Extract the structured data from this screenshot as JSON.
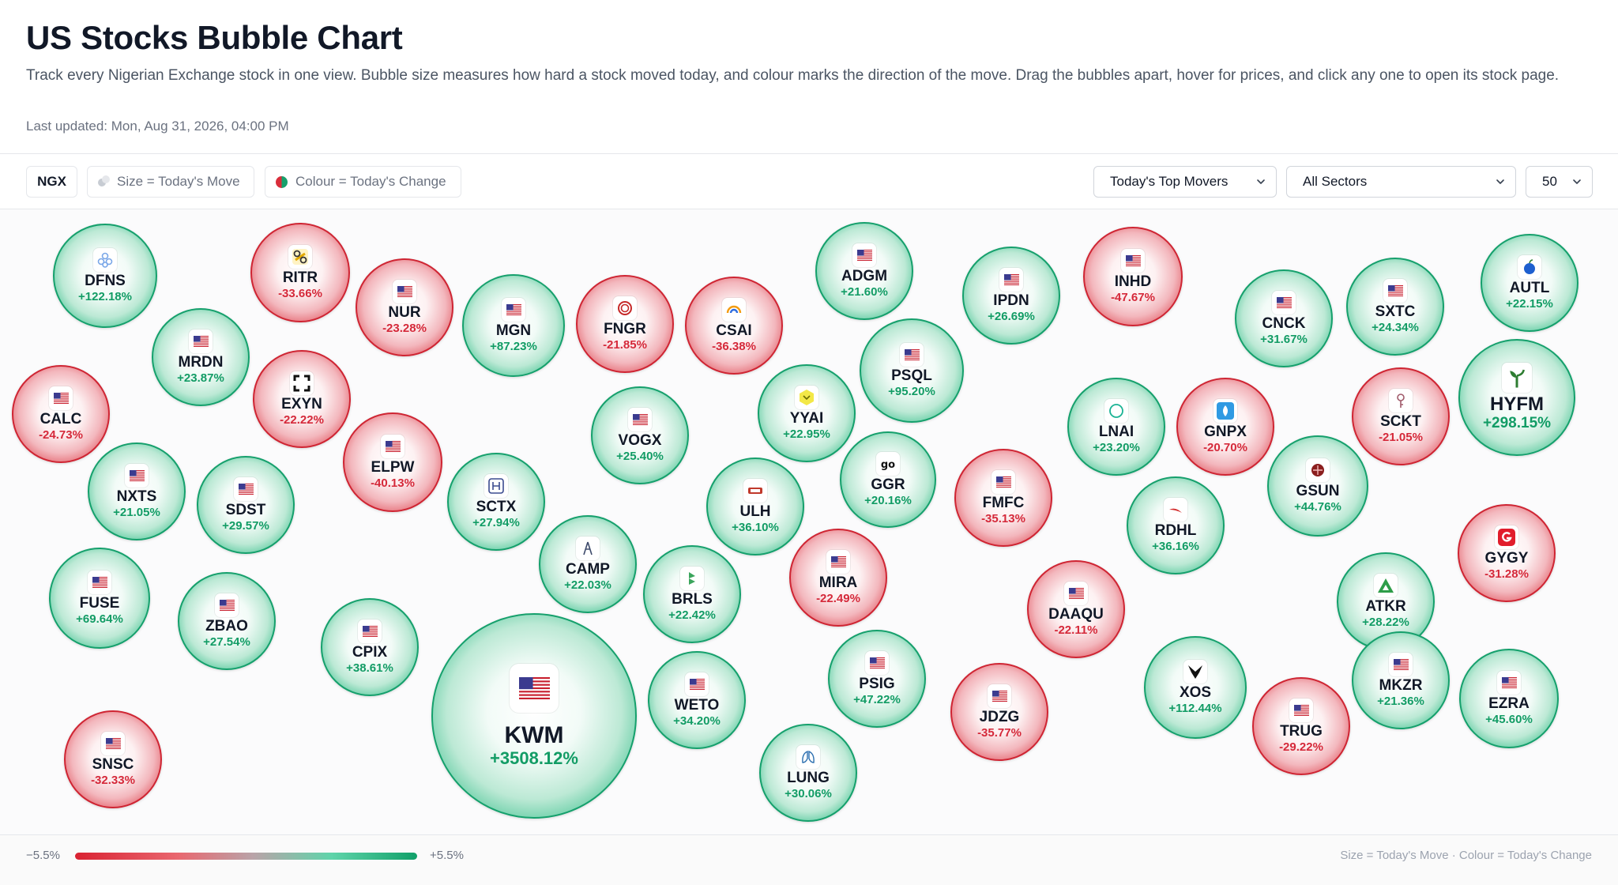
{
  "header": {
    "title": "US Stocks Bubble Chart",
    "subtitle": "Track every Nigerian Exchange stock in one view. Bubble size measures how hard a stock moved today, and colour marks the direction of the move. Drag the bubbles apart, hover for prices, and click any one to open its stock page.",
    "updated": "Last updated: Mon, Aug 31, 2026, 04:00 PM"
  },
  "toolbar": {
    "exchange": "NGX",
    "size_legend": "Size = Today's Move",
    "colour_legend": "Colour = Today's Change",
    "sort_select": "Today's Top Movers",
    "sector_select": "All Sectors",
    "count_select": "50"
  },
  "colors": {
    "up": "#15a06c",
    "down": "#cf2533"
  },
  "bubbles": [
    {
      "sym": "DFNS",
      "change": "+122.18%",
      "dir": "up",
      "logo": "flower-logo"
    },
    {
      "sym": "RITR",
      "change": "-33.66%",
      "dir": "down",
      "logo": "chain-logo"
    },
    {
      "sym": "NUR",
      "change": "-23.28%",
      "dir": "down",
      "logo": "us-flag-icon"
    },
    {
      "sym": "MGN",
      "change": "+87.23%",
      "dir": "up",
      "logo": "us-flag-icon"
    },
    {
      "sym": "FNGR",
      "change": "-21.85%",
      "dir": "down",
      "logo": "ring-logo"
    },
    {
      "sym": "CSAI",
      "change": "-36.38%",
      "dir": "down",
      "logo": "arc-logo"
    },
    {
      "sym": "ADGM",
      "change": "+21.60%",
      "dir": "up",
      "logo": "us-flag-icon"
    },
    {
      "sym": "IPDN",
      "change": "+26.69%",
      "dir": "up",
      "logo": "us-flag-icon"
    },
    {
      "sym": "INHD",
      "change": "-47.67%",
      "dir": "down",
      "logo": "us-flag-icon"
    },
    {
      "sym": "CNCK",
      "change": "+31.67%",
      "dir": "up",
      "logo": "us-flag-icon"
    },
    {
      "sym": "SXTC",
      "change": "+24.34%",
      "dir": "up",
      "logo": "us-flag-icon"
    },
    {
      "sym": "AUTL",
      "change": "+22.15%",
      "dir": "up",
      "logo": "blue-apple-logo"
    },
    {
      "sym": "MRDN",
      "change": "+23.87%",
      "dir": "up",
      "logo": "us-flag-icon"
    },
    {
      "sym": "EXYN",
      "change": "-22.22%",
      "dir": "down",
      "logo": "frame-logo"
    },
    {
      "sym": "PSQL",
      "change": "+95.20%",
      "dir": "up",
      "logo": "us-flag-icon"
    },
    {
      "sym": "CALC",
      "change": "-24.73%",
      "dir": "down",
      "logo": "us-flag-icon"
    },
    {
      "sym": "YYAI",
      "change": "+22.95%",
      "dir": "up",
      "logo": "yellow-hex-logo"
    },
    {
      "sym": "VOGX",
      "change": "+25.40%",
      "dir": "up",
      "logo": "us-flag-icon"
    },
    {
      "sym": "HYFM",
      "change": "+298.15%",
      "dir": "up",
      "logo": "plant-logo"
    },
    {
      "sym": "SCKT",
      "change": "-21.05%",
      "dir": "down",
      "logo": "key-logo"
    },
    {
      "sym": "LNAI",
      "change": "+23.20%",
      "dir": "up",
      "logo": "circle-logo"
    },
    {
      "sym": "GNPX",
      "change": "-20.70%",
      "dir": "down",
      "logo": "blue-drop-logo"
    },
    {
      "sym": "ELPW",
      "change": "-40.13%",
      "dir": "down",
      "logo": "us-flag-icon"
    },
    {
      "sym": "GGR",
      "change": "+20.16%",
      "dir": "up",
      "logo": "go-logo"
    },
    {
      "sym": "NXTS",
      "change": "+21.05%",
      "dir": "up",
      "logo": "us-flag-icon"
    },
    {
      "sym": "SDST",
      "change": "+29.57%",
      "dir": "up",
      "logo": "us-flag-icon"
    },
    {
      "sym": "SCTX",
      "change": "+27.94%",
      "dir": "up",
      "logo": "grid-logo"
    },
    {
      "sym": "ULH",
      "change": "+36.10%",
      "dir": "up",
      "logo": "truck-logo"
    },
    {
      "sym": "FMFC",
      "change": "-35.13%",
      "dir": "down",
      "logo": "us-flag-icon"
    },
    {
      "sym": "GSUN",
      "change": "+44.76%",
      "dir": "up",
      "logo": "sun-logo"
    },
    {
      "sym": "RDHL",
      "change": "+36.16%",
      "dir": "up",
      "logo": "red-swoosh-logo"
    },
    {
      "sym": "GYGY",
      "change": "-31.28%",
      "dir": "down",
      "logo": "red-g-logo"
    },
    {
      "sym": "CAMP",
      "change": "+22.03%",
      "dir": "up",
      "logo": "tower-logo"
    },
    {
      "sym": "BRLS",
      "change": "+22.42%",
      "dir": "up",
      "logo": "green-b-logo"
    },
    {
      "sym": "MIRA",
      "change": "-22.49%",
      "dir": "down",
      "logo": "us-flag-icon"
    },
    {
      "sym": "ATKR",
      "change": "+28.22%",
      "dir": "up",
      "logo": "green-a-logo"
    },
    {
      "sym": "FUSE",
      "change": "+69.64%",
      "dir": "up",
      "logo": "us-flag-icon"
    },
    {
      "sym": "ZBAO",
      "change": "+27.54%",
      "dir": "up",
      "logo": "us-flag-icon"
    },
    {
      "sym": "CPIX",
      "change": "+38.61%",
      "dir": "up",
      "logo": "us-flag-icon"
    },
    {
      "sym": "DAAQU",
      "change": "-22.11%",
      "dir": "down",
      "logo": "us-flag-icon"
    },
    {
      "sym": "KWM",
      "change": "+3508.12%",
      "dir": "up",
      "logo": "us-flag-icon"
    },
    {
      "sym": "PSIG",
      "change": "+47.22%",
      "dir": "up",
      "logo": "us-flag-icon"
    },
    {
      "sym": "WETO",
      "change": "+34.20%",
      "dir": "up",
      "logo": "us-flag-icon"
    },
    {
      "sym": "XOS",
      "change": "+112.44%",
      "dir": "up",
      "logo": "x-shield-logo"
    },
    {
      "sym": "MKZR",
      "change": "+21.36%",
      "dir": "up",
      "logo": "us-flag-icon"
    },
    {
      "sym": "EZRA",
      "change": "+45.60%",
      "dir": "up",
      "logo": "us-flag-icon"
    },
    {
      "sym": "JDZG",
      "change": "-35.77%",
      "dir": "down",
      "logo": "us-flag-icon"
    },
    {
      "sym": "TRUG",
      "change": "-29.22%",
      "dir": "down",
      "logo": "us-flag-icon"
    },
    {
      "sym": "SNSC",
      "change": "-32.33%",
      "dir": "down",
      "logo": "us-flag-icon"
    },
    {
      "sym": "LUNG",
      "change": "+30.06%",
      "dir": "up",
      "logo": "lungs-logo"
    }
  ],
  "footer": {
    "scale_min": "−5.5%",
    "scale_max": "+5.5%",
    "legend_note": "Size = Today's Move · Colour = Today's Change"
  }
}
